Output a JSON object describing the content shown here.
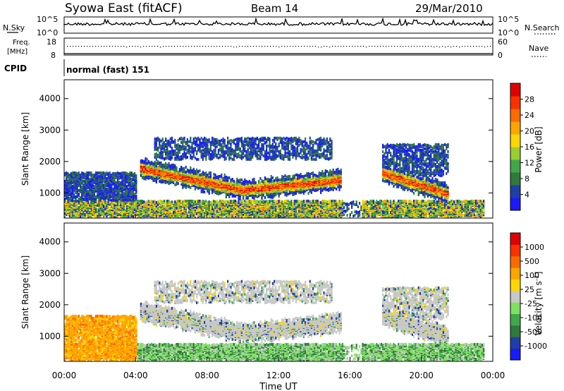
{
  "header": {
    "station": "Syowa East (fitACF)",
    "beam": "Beam 14",
    "date": "29/Mar/2010"
  },
  "top_panels": {
    "nsky_label": "N.Sky",
    "nsearch_label": "N.Search",
    "count_top_tick": "10^5",
    "count_bottom_tick": "10^0",
    "freq_label_line1": "Freq.",
    "freq_label_line2": "[MHz]",
    "freq_ticks": [
      "18",
      "8"
    ],
    "nave_label": "Nave",
    "nave_ticks": [
      "60",
      "0"
    ],
    "cpid_label": "CPID",
    "cpid_value": "normal (fast) 151"
  },
  "colors": {
    "power_scale": [
      "#1a1aff",
      "#1f3fa8",
      "#2f7a3a",
      "#3fa84a",
      "#9acd32",
      "#ffd700",
      "#ffa500",
      "#ff6a00",
      "#ff3000",
      "#e00000"
    ],
    "velocity_scale": [
      "#1a1aff",
      "#1f3fa8",
      "#2f7a3a",
      "#3fa84a",
      "#80e060",
      "#c8c8c8",
      "#ffd700",
      "#ffa500",
      "#ff6a00",
      "#ff3000",
      "#e00000"
    ]
  },
  "chart_data": [
    {
      "type": "heatmap",
      "name": "power",
      "ylabel": "Slant Range [km]",
      "yticks": [
        "1000",
        "2000",
        "3000",
        "4000"
      ],
      "ylim": [
        200,
        4600
      ],
      "colorbar_label": "Power [dB]",
      "colorbar_ticks": [
        "4",
        "8",
        "12",
        "16",
        "20",
        "24",
        "28"
      ],
      "colorbar_range": [
        0,
        32
      ]
    },
    {
      "type": "heatmap",
      "name": "velocity",
      "ylabel": "Slant Range [km]",
      "yticks": [
        "1000",
        "2000",
        "3000",
        "4000"
      ],
      "ylim": [
        200,
        4600
      ],
      "colorbar_label": "Velocity [m s^-1]",
      "colorbar_ticks": [
        "1000",
        "500",
        "100",
        "25",
        "-25",
        "-100",
        "-500",
        "-1000"
      ],
      "xlabel": "Time UT",
      "xticks": [
        "00:00",
        "04:00",
        "08:00",
        "12:00",
        "16:00",
        "20:00",
        "00:00"
      ],
      "xlim_hours": [
        0,
        24
      ]
    }
  ]
}
